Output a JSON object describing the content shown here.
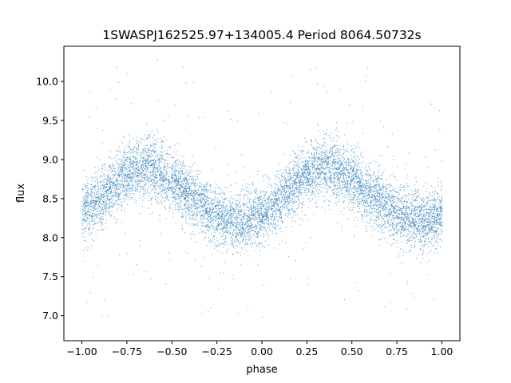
{
  "chart_data": {
    "type": "scatter",
    "title": "1SWASPJ162525.97+134005.4 Period 8064.50732s",
    "xlabel": "phase",
    "ylabel": "flux",
    "xlim": [
      -1.1,
      1.1
    ],
    "ylim": [
      6.68,
      10.45
    ],
    "xticks": [
      -1.0,
      -0.75,
      -0.5,
      -0.25,
      0.0,
      0.25,
      0.5,
      0.75,
      1.0
    ],
    "xtick_labels": [
      "−1.00",
      "−0.75",
      "−0.50",
      "−0.25",
      "0.00",
      "0.25",
      "0.50",
      "0.75",
      "1.00"
    ],
    "yticks": [
      7.0,
      7.5,
      8.0,
      8.5,
      9.0,
      9.5,
      10.0
    ],
    "ytick_labels": [
      "7.0",
      "7.5",
      "8.0",
      "8.5",
      "9.0",
      "9.5",
      "10.0"
    ],
    "grid": false,
    "legend": "none",
    "point_color": "#1f77b4",
    "series": [
      {
        "values": [
          [
            -1.0,
            8.32
          ],
          [
            -0.9,
            8.5
          ],
          [
            -0.8,
            8.72
          ],
          [
            -0.7,
            8.88
          ],
          [
            -0.65,
            8.91
          ],
          [
            -0.6,
            8.88
          ],
          [
            -0.5,
            8.74
          ],
          [
            -0.4,
            8.53
          ],
          [
            -0.3,
            8.36
          ],
          [
            -0.2,
            8.23
          ],
          [
            -0.15,
            8.2
          ],
          [
            -0.1,
            8.21
          ],
          [
            0.0,
            8.3
          ],
          [
            0.1,
            8.5
          ],
          [
            0.2,
            8.73
          ],
          [
            0.3,
            8.87
          ],
          [
            0.35,
            8.9
          ],
          [
            0.4,
            8.88
          ],
          [
            0.5,
            8.75
          ],
          [
            0.6,
            8.55
          ],
          [
            0.7,
            8.38
          ],
          [
            0.8,
            8.25
          ],
          [
            0.85,
            8.22
          ],
          [
            0.9,
            8.21
          ],
          [
            1.0,
            8.3
          ]
        ]
      }
    ]
  }
}
